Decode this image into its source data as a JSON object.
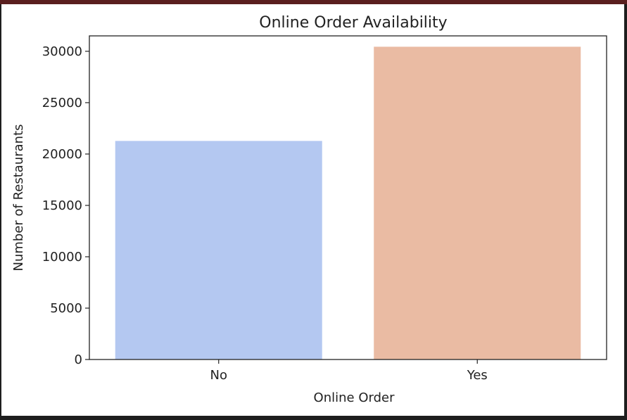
{
  "chart_data": {
    "type": "bar",
    "title": "Online Order Availability",
    "xlabel": "Online Order",
    "ylabel": "Number of Restaurants",
    "categories": [
      "No",
      "Yes"
    ],
    "values": [
      21273,
      30444
    ],
    "colors": [
      "#b4c8f1",
      "#eabba3"
    ],
    "ylim": [
      0,
      31500
    ],
    "yticks": [
      0,
      5000,
      10000,
      15000,
      20000,
      25000,
      30000
    ],
    "grid": false
  }
}
